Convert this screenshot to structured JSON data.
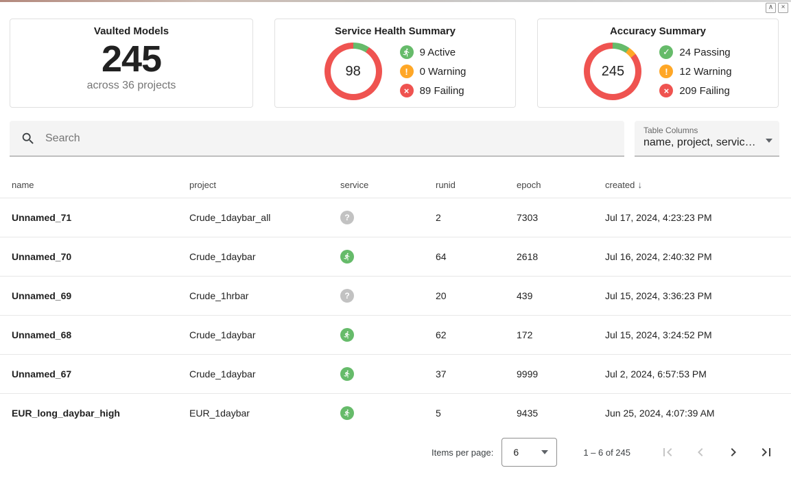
{
  "window_controls": {
    "collapse_icon": "∧",
    "close_icon": "×"
  },
  "icons": {
    "unknown": "?",
    "check": "✓",
    "warning": "!",
    "failing": "×",
    "sort_desc": "↓"
  },
  "colors": {
    "active": "#66bb6a",
    "warning": "#ffa726",
    "failing": "#ef5350",
    "unknown": "#c2c2c2"
  },
  "cards": {
    "vaulted_models": {
      "title": "Vaulted Models",
      "count": "245",
      "subtitle": "across 36 projects"
    },
    "service_health": {
      "title": "Service Health Summary",
      "donut_center": "98",
      "chart": {
        "type": "pie",
        "segments": [
          {
            "label": "Active",
            "value": 9,
            "color": "#66bb6a"
          },
          {
            "label": "Warning",
            "value": 0,
            "color": "#ffa726"
          },
          {
            "label": "Failing",
            "value": 89,
            "color": "#ef5350"
          }
        ]
      },
      "legend": [
        {
          "icon": "runner-icon",
          "color": "#66bb6a",
          "text": "9 Active"
        },
        {
          "icon": "warning-icon",
          "color": "#ffa726",
          "text": "0 Warning"
        },
        {
          "icon": "failing-icon",
          "color": "#ef5350",
          "text": "89 Failing"
        }
      ]
    },
    "accuracy": {
      "title": "Accuracy Summary",
      "donut_center": "245",
      "chart": {
        "type": "pie",
        "segments": [
          {
            "label": "Passing",
            "value": 24,
            "color": "#66bb6a"
          },
          {
            "label": "Warning",
            "value": 12,
            "color": "#ffa726"
          },
          {
            "label": "Failing",
            "value": 209,
            "color": "#ef5350"
          }
        ]
      },
      "legend": [
        {
          "icon": "check-icon",
          "color": "#66bb6a",
          "text": "24 Passing"
        },
        {
          "icon": "warning-icon",
          "color": "#ffa726",
          "text": "12 Warning"
        },
        {
          "icon": "failing-icon",
          "color": "#ef5350",
          "text": "209 Failing"
        }
      ]
    }
  },
  "search": {
    "placeholder": "Search"
  },
  "table_columns": {
    "label": "Table Columns",
    "value": "name, project, servic…"
  },
  "table": {
    "headers": [
      "name",
      "project",
      "service",
      "runid",
      "epoch",
      "created"
    ],
    "sort_column": "created",
    "rows": [
      {
        "name": "Unnamed_71",
        "project": "Crude_1daybar_all",
        "service": "unknown",
        "runid": "2",
        "epoch": "7303",
        "created": "Jul 17, 2024, 4:23:23 PM"
      },
      {
        "name": "Unnamed_70",
        "project": "Crude_1daybar",
        "service": "active",
        "runid": "64",
        "epoch": "2618",
        "created": "Jul 16, 2024, 2:40:32 PM"
      },
      {
        "name": "Unnamed_69",
        "project": "Crude_1hrbar",
        "service": "unknown",
        "runid": "20",
        "epoch": "439",
        "created": "Jul 15, 2024, 3:36:23 PM"
      },
      {
        "name": "Unnamed_68",
        "project": "Crude_1daybar",
        "service": "active",
        "runid": "62",
        "epoch": "172",
        "created": "Jul 15, 2024, 3:24:52 PM"
      },
      {
        "name": "Unnamed_67",
        "project": "Crude_1daybar",
        "service": "active",
        "runid": "37",
        "epoch": "9999",
        "created": "Jul 2, 2024, 6:57:53 PM"
      },
      {
        "name": "EUR_long_daybar_high",
        "project": "EUR_1daybar",
        "service": "active",
        "runid": "5",
        "epoch": "9435",
        "created": "Jun 25, 2024, 4:07:39 AM"
      }
    ]
  },
  "pagination": {
    "items_per_page_label": "Items per page:",
    "page_size": "6",
    "range_text": "1 – 6 of 245"
  }
}
